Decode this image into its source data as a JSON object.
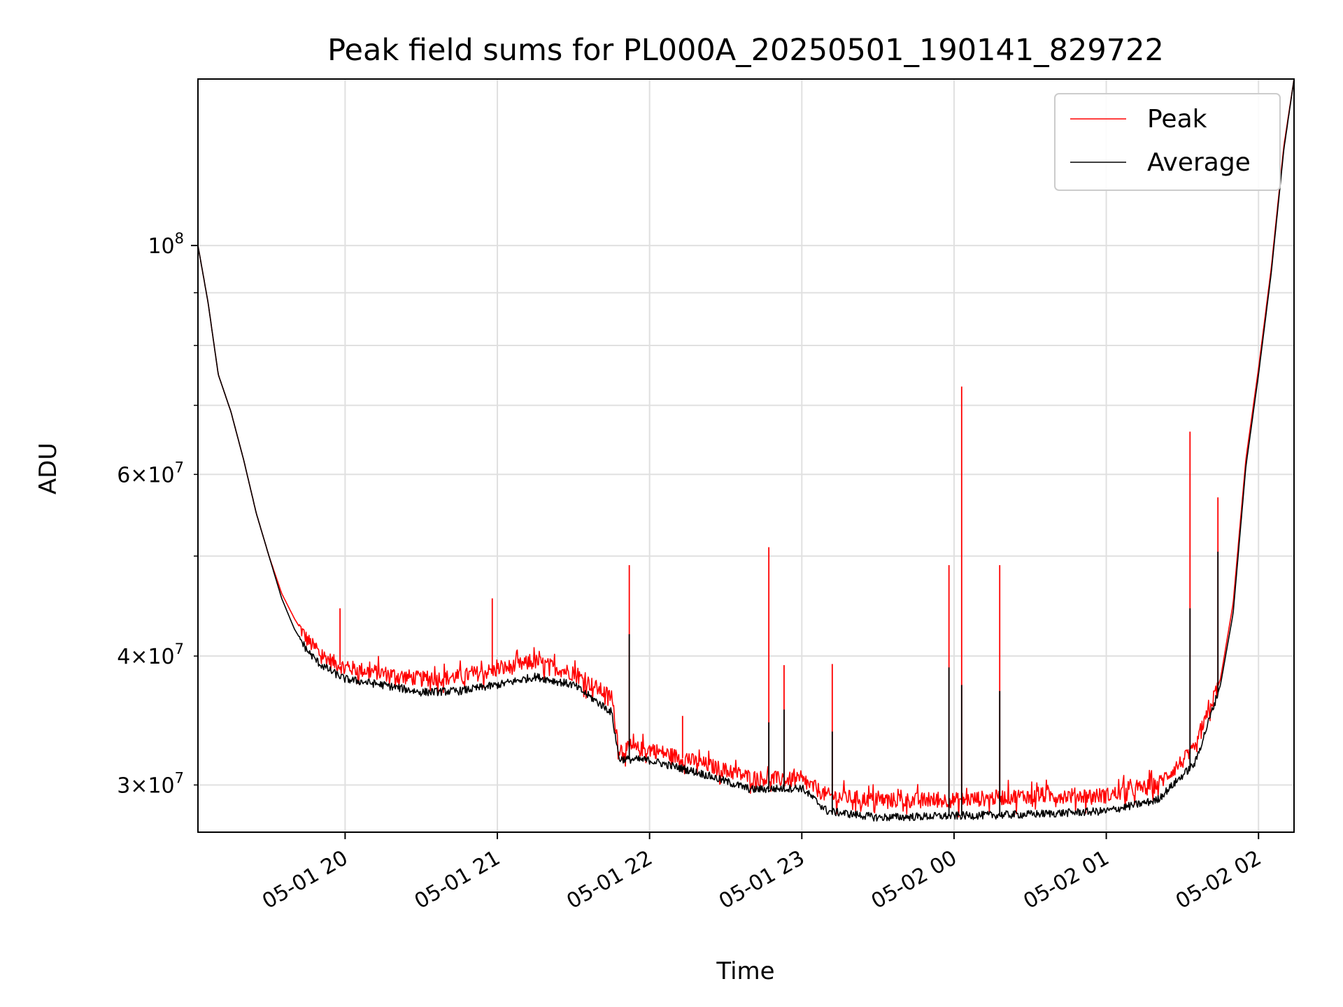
{
  "chart_data": {
    "type": "line",
    "title": "Peak field sums for PL000A_20250501_190141_829722",
    "xlabel": "Time",
    "ylabel": "ADU",
    "y_scale": "log",
    "grid": true,
    "legend_position": "top-right",
    "xlim": [
      "2025-05-01 19:02",
      "2025-05-02 02:14"
    ],
    "ylim": [
      27000000,
      145000000
    ],
    "x_ticks": [
      {
        "t": "2025-05-01 20:00",
        "label": "05-01 20"
      },
      {
        "t": "2025-05-01 21:00",
        "label": "05-01 21"
      },
      {
        "t": "2025-05-01 22:00",
        "label": "05-01 22"
      },
      {
        "t": "2025-05-01 23:00",
        "label": "05-01 23"
      },
      {
        "t": "2025-05-02 00:00",
        "label": "05-02 00"
      },
      {
        "t": "2025-05-02 01:00",
        "label": "05-02 01"
      },
      {
        "t": "2025-05-02 02:00",
        "label": "05-02 02"
      }
    ],
    "y_ticks_major": [
      {
        "v": 100000000,
        "base": "10",
        "exp": "8",
        "coef": ""
      }
    ],
    "y_ticks_minor": [
      {
        "v": 30000000,
        "coef": "3",
        "base": "10",
        "exp": "7"
      },
      {
        "v": 40000000,
        "coef": "4",
        "base": "10",
        "exp": "7"
      },
      {
        "v": 60000000,
        "coef": "6",
        "base": "10",
        "exp": "7"
      }
    ],
    "y_minor_unlabeled": [
      50000000,
      70000000,
      80000000,
      90000000
    ],
    "series": [
      {
        "name": "Peak",
        "color": "#ff0000",
        "points": [
          [
            "2025-05-01 19:02",
            100000000
          ],
          [
            "2025-05-01 19:06",
            88000000
          ],
          [
            "2025-05-01 19:10",
            75000000
          ],
          [
            "2025-05-01 19:15",
            69000000
          ],
          [
            "2025-05-01 19:20",
            62000000
          ],
          [
            "2025-05-01 19:25",
            55000000
          ],
          [
            "2025-05-01 19:30",
            50000000
          ],
          [
            "2025-05-01 19:35",
            46000000
          ],
          [
            "2025-05-01 19:40",
            43500000
          ],
          [
            "2025-05-01 19:45",
            41500000
          ],
          [
            "2025-05-01 19:50",
            40200000
          ],
          [
            "2025-05-01 19:55",
            39500000
          ],
          [
            "2025-05-01 20:00",
            39000000
          ],
          [
            "2025-05-01 20:15",
            38500000
          ],
          [
            "2025-05-01 20:30",
            38000000
          ],
          [
            "2025-05-01 20:45",
            38200000
          ],
          [
            "2025-05-01 21:00",
            38800000
          ],
          [
            "2025-05-01 21:15",
            39500000
          ],
          [
            "2025-05-01 21:30",
            38500000
          ],
          [
            "2025-05-01 21:45",
            36500000
          ],
          [
            "2025-05-01 21:48",
            32500000
          ],
          [
            "2025-05-01 22:00",
            32500000
          ],
          [
            "2025-05-01 22:20",
            31500000
          ],
          [
            "2025-05-01 22:40",
            30500000
          ],
          [
            "2025-05-01 23:00",
            30300000
          ],
          [
            "2025-05-01 23:10",
            29300000
          ],
          [
            "2025-05-01 23:30",
            29000000
          ],
          [
            "2025-05-02 00:00",
            29000000
          ],
          [
            "2025-05-02 00:30",
            29300000
          ],
          [
            "2025-05-02 01:00",
            29300000
          ],
          [
            "2025-05-02 01:20",
            30000000
          ],
          [
            "2025-05-02 01:35",
            32500000
          ],
          [
            "2025-05-02 01:45",
            38000000
          ],
          [
            "2025-05-02 01:50",
            45000000
          ],
          [
            "2025-05-02 01:55",
            62000000
          ],
          [
            "2025-05-02 02:00",
            76000000
          ],
          [
            "2025-05-02 02:05",
            95000000
          ],
          [
            "2025-05-02 02:10",
            125000000
          ],
          [
            "2025-05-02 02:14",
            145000000
          ]
        ],
        "spikes": [
          [
            "2025-05-01 19:58",
            44500000
          ],
          [
            "2025-05-01 20:58",
            45500000
          ],
          [
            "2025-05-01 21:52",
            49000000
          ],
          [
            "2025-05-01 22:13",
            35000000
          ],
          [
            "2025-05-01 22:47",
            51000000
          ],
          [
            "2025-05-01 22:53",
            39200000
          ],
          [
            "2025-05-01 23:12",
            39300000
          ],
          [
            "2025-05-01 23:58",
            49000000
          ],
          [
            "2025-05-02 00:03",
            73000000
          ],
          [
            "2025-05-02 00:18",
            49000000
          ],
          [
            "2025-05-02 01:33",
            66000000
          ],
          [
            "2025-05-02 01:44",
            57000000
          ]
        ]
      },
      {
        "name": "Average",
        "color": "#000000",
        "points": [
          [
            "2025-05-01 19:02",
            100000000
          ],
          [
            "2025-05-01 19:06",
            88000000
          ],
          [
            "2025-05-01 19:10",
            75000000
          ],
          [
            "2025-05-01 19:15",
            69000000
          ],
          [
            "2025-05-01 19:20",
            62000000
          ],
          [
            "2025-05-01 19:25",
            55000000
          ],
          [
            "2025-05-01 19:30",
            50000000
          ],
          [
            "2025-05-01 19:35",
            45500000
          ],
          [
            "2025-05-01 19:40",
            42500000
          ],
          [
            "2025-05-01 19:45",
            40500000
          ],
          [
            "2025-05-01 19:50",
            39300000
          ],
          [
            "2025-05-01 19:55",
            38600000
          ],
          [
            "2025-05-01 20:00",
            38000000
          ],
          [
            "2025-05-01 20:15",
            37500000
          ],
          [
            "2025-05-01 20:30",
            36900000
          ],
          [
            "2025-05-01 20:45",
            37000000
          ],
          [
            "2025-05-01 21:00",
            37500000
          ],
          [
            "2025-05-01 21:15",
            38200000
          ],
          [
            "2025-05-01 21:30",
            37500000
          ],
          [
            "2025-05-01 21:45",
            35300000
          ],
          [
            "2025-05-01 21:48",
            31800000
          ],
          [
            "2025-05-01 22:00",
            31700000
          ],
          [
            "2025-05-01 22:20",
            30800000
          ],
          [
            "2025-05-01 22:40",
            29700000
          ],
          [
            "2025-05-01 23:00",
            29800000
          ],
          [
            "2025-05-01 23:10",
            28300000
          ],
          [
            "2025-05-01 23:30",
            27900000
          ],
          [
            "2025-05-02 00:00",
            28000000
          ],
          [
            "2025-05-02 00:30",
            28100000
          ],
          [
            "2025-05-02 01:00",
            28300000
          ],
          [
            "2025-05-02 01:20",
            29000000
          ],
          [
            "2025-05-02 01:35",
            31500000
          ],
          [
            "2025-05-02 01:45",
            37500000
          ],
          [
            "2025-05-02 01:50",
            44000000
          ],
          [
            "2025-05-02 01:55",
            61000000
          ],
          [
            "2025-05-02 02:00",
            75000000
          ],
          [
            "2025-05-02 02:05",
            94000000
          ],
          [
            "2025-05-02 02:10",
            124000000
          ],
          [
            "2025-05-02 02:14",
            145000000
          ]
        ],
        "spikes": [
          [
            "2025-05-01 21:52",
            42000000
          ],
          [
            "2025-05-01 22:47",
            34500000
          ],
          [
            "2025-05-01 22:53",
            35500000
          ],
          [
            "2025-05-01 23:12",
            33800000
          ],
          [
            "2025-05-01 23:58",
            39000000
          ],
          [
            "2025-05-02 00:03",
            37500000
          ],
          [
            "2025-05-02 00:18",
            37000000
          ],
          [
            "2025-05-02 01:33",
            44500000
          ],
          [
            "2025-05-02 01:44",
            50500000
          ]
        ]
      }
    ]
  }
}
